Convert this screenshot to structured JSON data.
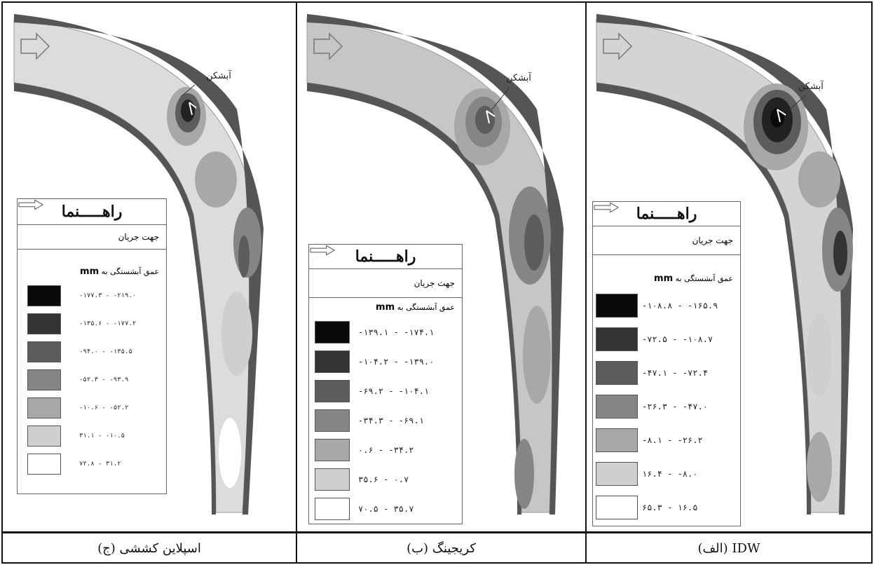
{
  "panels": {
    "right": {
      "caption": "IDW (الف)",
      "weir_label": "آبشکن",
      "legend": {
        "title": "راهـــــنما",
        "flow_label": "جهت جریان",
        "depth_label": "عمق آبشستگی به",
        "depth_unit": "mm",
        "ranges": [
          "-۱۰۸.۸ - -۱۶۵.۹",
          "-۷۲.۵ - -۱۰۸.۷",
          "-۴۷.۱ - -۷۲.۴",
          "-۲۶.۳ - -۴۷.۰",
          "-۸.۱ - -۲۶.۲",
          "۱۶.۴ - -۸.۰",
          "۶۵.۳ - ۱۶.۵"
        ]
      }
    },
    "middle": {
      "caption": "کریجینگ (ب)",
      "weir_label": "آبشکن",
      "legend": {
        "title": "راهـــــنما",
        "flow_label": "جهت جریان",
        "depth_label": "عمق آبشستگی به",
        "depth_unit": "mm",
        "ranges": [
          "-۱۳۹.۱ - -۱۷۴.۱",
          "-۱۰۴.۲ - -۱۳۹.۰",
          "-۶۹.۲ - -۱۰۴.۱",
          "-۳۴.۳ - -۶۹.۱",
          "۰.۶ - -۳۴.۲",
          "۳۵.۶ - ۰.۷",
          "۷۰.۵ - ۳۵.۷"
        ]
      }
    },
    "left": {
      "caption": "اسپلاین کششی (ج)",
      "weir_label": "آبشکن",
      "legend": {
        "title": "راهـــــنما",
        "flow_label": "جهت جریان",
        "depth_label": "عمق آبشستگی به",
        "depth_unit": "mm",
        "ranges": [
          "-۱۷۷.۳ - -۲۱۹.۰",
          "-۱۳۵.۶ - -۱۷۷.۲",
          "-۹۴.۰ - -۱۳۵.۵",
          "-۵۲.۳ - -۹۳.۹",
          "-۱۰.۶ - -۵۲.۲",
          "۳۱.۱ - -۱۰.۵",
          "۷۲.۸ - ۳۱.۲"
        ]
      }
    }
  },
  "colors": {
    "scale": [
      "#0a0a0a",
      "#333333",
      "#5c5c5c",
      "#858585",
      "#a8a8a8",
      "#cfcfcf",
      "#ffffff"
    ],
    "bank": "#4a4a4a",
    "water": "#d9d9d9"
  }
}
